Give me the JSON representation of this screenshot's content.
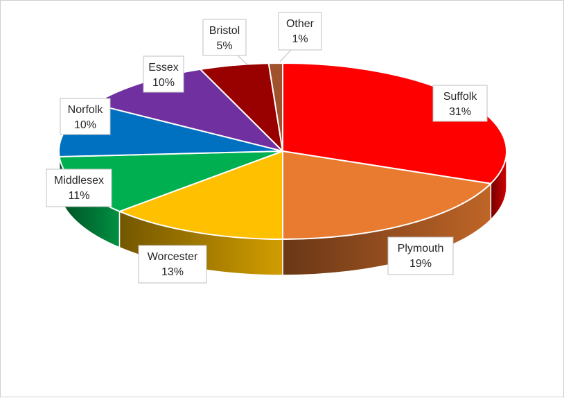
{
  "chart_data": {
    "type": "pie",
    "style": "3d",
    "title": "",
    "categories": [
      "Suffolk",
      "Plymouth",
      "Worcester",
      "Middlesex",
      "Norfolk",
      "Essex",
      "Bristol",
      "Other"
    ],
    "values": [
      31,
      19,
      13,
      11,
      10,
      10,
      5,
      1
    ],
    "value_labels": [
      "31%",
      "19%",
      "13%",
      "11%",
      "10%",
      "10%",
      "5%",
      "1%"
    ],
    "colors": [
      "#ff0000",
      "#e97b30",
      "#ffc000",
      "#00b050",
      "#0070c0",
      "#7030a0",
      "#990000",
      "#a0522d"
    ],
    "legend": "none",
    "data_labels": "callouts"
  }
}
